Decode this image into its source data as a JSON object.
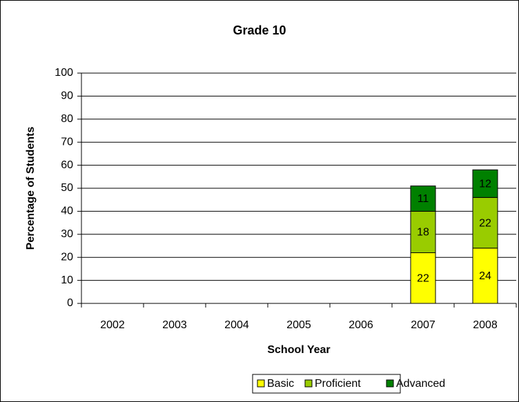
{
  "chart_data": {
    "type": "stacked_bar",
    "title": "Grade 10",
    "x_label": "School Year",
    "y_label": "Percentage of Students",
    "categories": [
      "2002",
      "2003",
      "2004",
      "2005",
      "2006",
      "2007",
      "2008"
    ],
    "series": [
      {
        "name": "Basic",
        "color": "#ffff00",
        "values": [
          null,
          null,
          null,
          null,
          null,
          22,
          24
        ]
      },
      {
        "name": "Proficient",
        "color": "#99cc00",
        "values": [
          null,
          null,
          null,
          null,
          null,
          18,
          22
        ]
      },
      {
        "name": "Advanced",
        "color": "#008000",
        "values": [
          null,
          null,
          null,
          null,
          null,
          11,
          12
        ]
      }
    ],
    "ylim": [
      0,
      100
    ],
    "yticks": [
      0,
      10,
      20,
      30,
      40,
      50,
      60,
      70,
      80,
      90,
      100
    ],
    "grid": true,
    "legend": "bottom"
  }
}
